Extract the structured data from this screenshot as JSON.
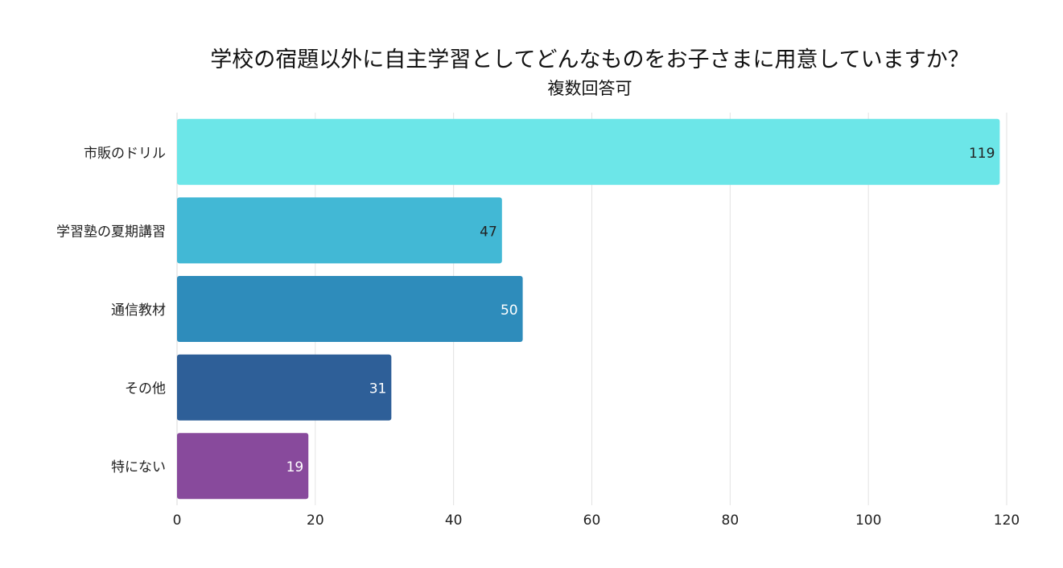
{
  "chart_data": {
    "type": "bar",
    "orientation": "horizontal",
    "title": "学校の宿題以外に自主学習としてどんなものをお子さまに用意していますか？",
    "subtitle": "複数回答可",
    "categories": [
      "市販のドリル",
      "学習塾の夏期講習",
      "通信教材",
      "その他",
      "特にない"
    ],
    "values": [
      119,
      47,
      50,
      31,
      19
    ],
    "colors": [
      "#6ce6e8",
      "#42b8d5",
      "#2e8cbb",
      "#2e5f98",
      "#884a9c"
    ],
    "label_colors": [
      "#222222",
      "#222222",
      "#ffffff",
      "#ffffff",
      "#ffffff"
    ],
    "xlim": [
      0,
      120
    ],
    "xticks": [
      0,
      20,
      40,
      60,
      80,
      100,
      120
    ],
    "grid": true,
    "xlabel": "",
    "ylabel": ""
  }
}
